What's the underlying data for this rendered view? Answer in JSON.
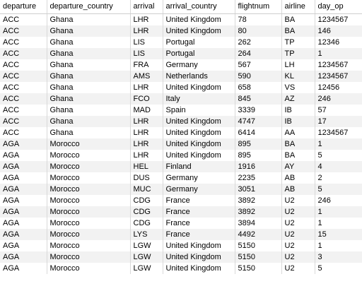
{
  "columns": [
    "departure",
    "departure_country",
    "arrival",
    "arrival_country",
    "flightnum",
    "airline",
    "day_op"
  ],
  "rows": [
    [
      "ACC",
      "Ghana",
      "LHR",
      "United Kingdom",
      "78",
      "BA",
      "1234567"
    ],
    [
      "ACC",
      "Ghana",
      "LHR",
      "United Kingdom",
      "80",
      "BA",
      "146"
    ],
    [
      "ACC",
      "Ghana",
      "LIS",
      "Portugal",
      "262",
      "TP",
      "12346"
    ],
    [
      "ACC",
      "Ghana",
      "LIS",
      "Portugal",
      "264",
      "TP",
      "1"
    ],
    [
      "ACC",
      "Ghana",
      "FRA",
      "Germany",
      "567",
      "LH",
      "1234567"
    ],
    [
      "ACC",
      "Ghana",
      "AMS",
      "Netherlands",
      "590",
      "KL",
      "1234567"
    ],
    [
      "ACC",
      "Ghana",
      "LHR",
      "United Kingdom",
      "658",
      "VS",
      "12456"
    ],
    [
      "ACC",
      "Ghana",
      "FCO",
      "Italy",
      "845",
      "AZ",
      "246"
    ],
    [
      "ACC",
      "Ghana",
      "MAD",
      "Spain",
      "3339",
      "IB",
      "57"
    ],
    [
      "ACC",
      "Ghana",
      "LHR",
      "United Kingdom",
      "4747",
      "IB",
      "17"
    ],
    [
      "ACC",
      "Ghana",
      "LHR",
      "United Kingdom",
      "6414",
      "AA",
      "1234567"
    ],
    [
      "AGA",
      "Morocco",
      "LHR",
      "United Kingdom",
      "895",
      "BA",
      "1"
    ],
    [
      "AGA",
      "Morocco",
      "LHR",
      "United Kingdom",
      "895",
      "BA",
      "5"
    ],
    [
      "AGA",
      "Morocco",
      "HEL",
      "Finland",
      "1916",
      "AY",
      "4"
    ],
    [
      "AGA",
      "Morocco",
      "DUS",
      "Germany",
      "2235",
      "AB",
      "2"
    ],
    [
      "AGA",
      "Morocco",
      "MUC",
      "Germany",
      "3051",
      "AB",
      "5"
    ],
    [
      "AGA",
      "Morocco",
      "CDG",
      "France",
      "3892",
      "U2",
      "246"
    ],
    [
      "AGA",
      "Morocco",
      "CDG",
      "France",
      "3892",
      "U2",
      "1"
    ],
    [
      "AGA",
      "Morocco",
      "CDG",
      "France",
      "3894",
      "U2",
      "1"
    ],
    [
      "AGA",
      "Morocco",
      "LYS",
      "France",
      "4492",
      "U2",
      "15"
    ],
    [
      "AGA",
      "Morocco",
      "LGW",
      "United Kingdom",
      "5150",
      "U2",
      "1"
    ],
    [
      "AGA",
      "Morocco",
      "LGW",
      "United Kingdom",
      "5150",
      "U2",
      "3"
    ],
    [
      "AGA",
      "Morocco",
      "LGW",
      "United Kingdom",
      "5150",
      "U2",
      "5"
    ]
  ]
}
